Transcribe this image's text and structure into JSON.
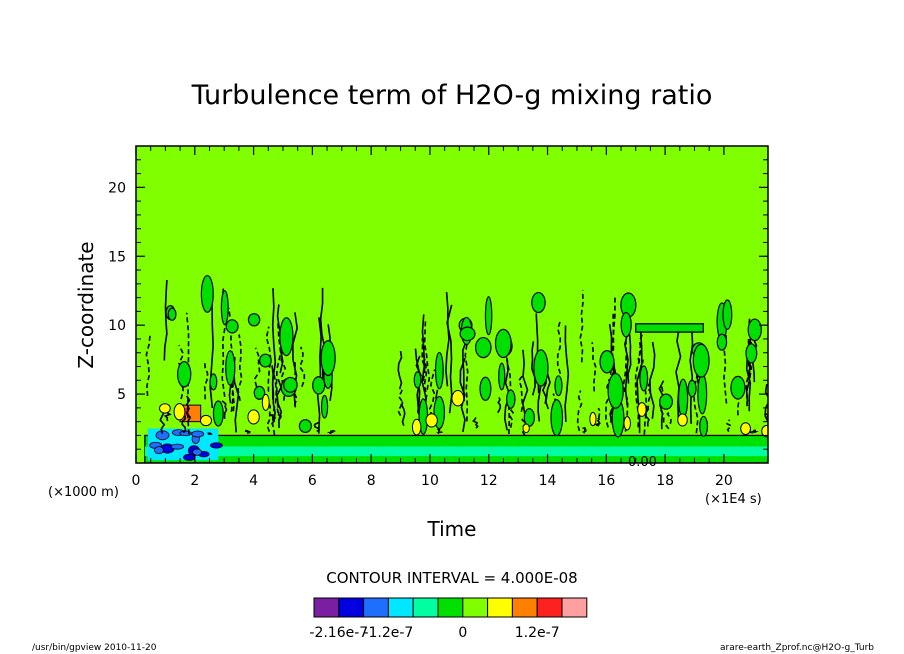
{
  "chart_data": {
    "type": "contour",
    "title": "Turbulence term of H2O-g mixing ratio",
    "xlabel": "Time",
    "ylabel": "Z-coordinate",
    "x_unit": "(×1E4 s)",
    "y_unit": "(×1000 m)",
    "xlim": [
      0,
      21.5
    ],
    "ylim": [
      0,
      23
    ],
    "xticks": [
      "0",
      "2",
      "4",
      "6",
      "8",
      "10",
      "12",
      "14",
      "16",
      "18",
      "20"
    ],
    "yticks": [
      "5",
      "10",
      "15",
      "20"
    ],
    "background_level": 0,
    "contour_interval_text": "CONTOUR INTERVAL = 4.000E-08",
    "annotation": "0.00",
    "colorbar": {
      "colors": [
        "#7a1fa2",
        "#0000e0",
        "#1f6fff",
        "#00e8ff",
        "#00ffa0",
        "#00e000",
        "#7fff00",
        "#ffff00",
        "#ff8000",
        "#ff2020",
        "#ffa0a0"
      ],
      "labels": [
        "-2.16e-7",
        "-1.2e-7",
        "0",
        "1.2e-7"
      ]
    },
    "turbulent_bursts": [
      {
        "x_start": 0.3,
        "x_end": 6.8,
        "max_z": 13.5
      },
      {
        "x_start": 8.9,
        "x_end": 17.0,
        "max_z": 13.0
      },
      {
        "x_start": 17.0,
        "x_end": 19.3,
        "max_z": 10.2
      },
      {
        "x_start": 19.3,
        "x_end": 21.5,
        "max_z": 12.5
      }
    ],
    "strong_negative_region": {
      "x_start": 0.4,
      "x_end": 2.8,
      "z_start": 0.2,
      "z_end": 2.5
    },
    "strong_positive_region": {
      "x_start": 1.5,
      "x_end": 2.2,
      "z_start": 3.0,
      "z_end": 4.2
    }
  },
  "footer": {
    "left": "/usr/bin/gpview   2010-11-20",
    "right": "arare-earth_Zprof.nc@H2O-g_Turb"
  }
}
